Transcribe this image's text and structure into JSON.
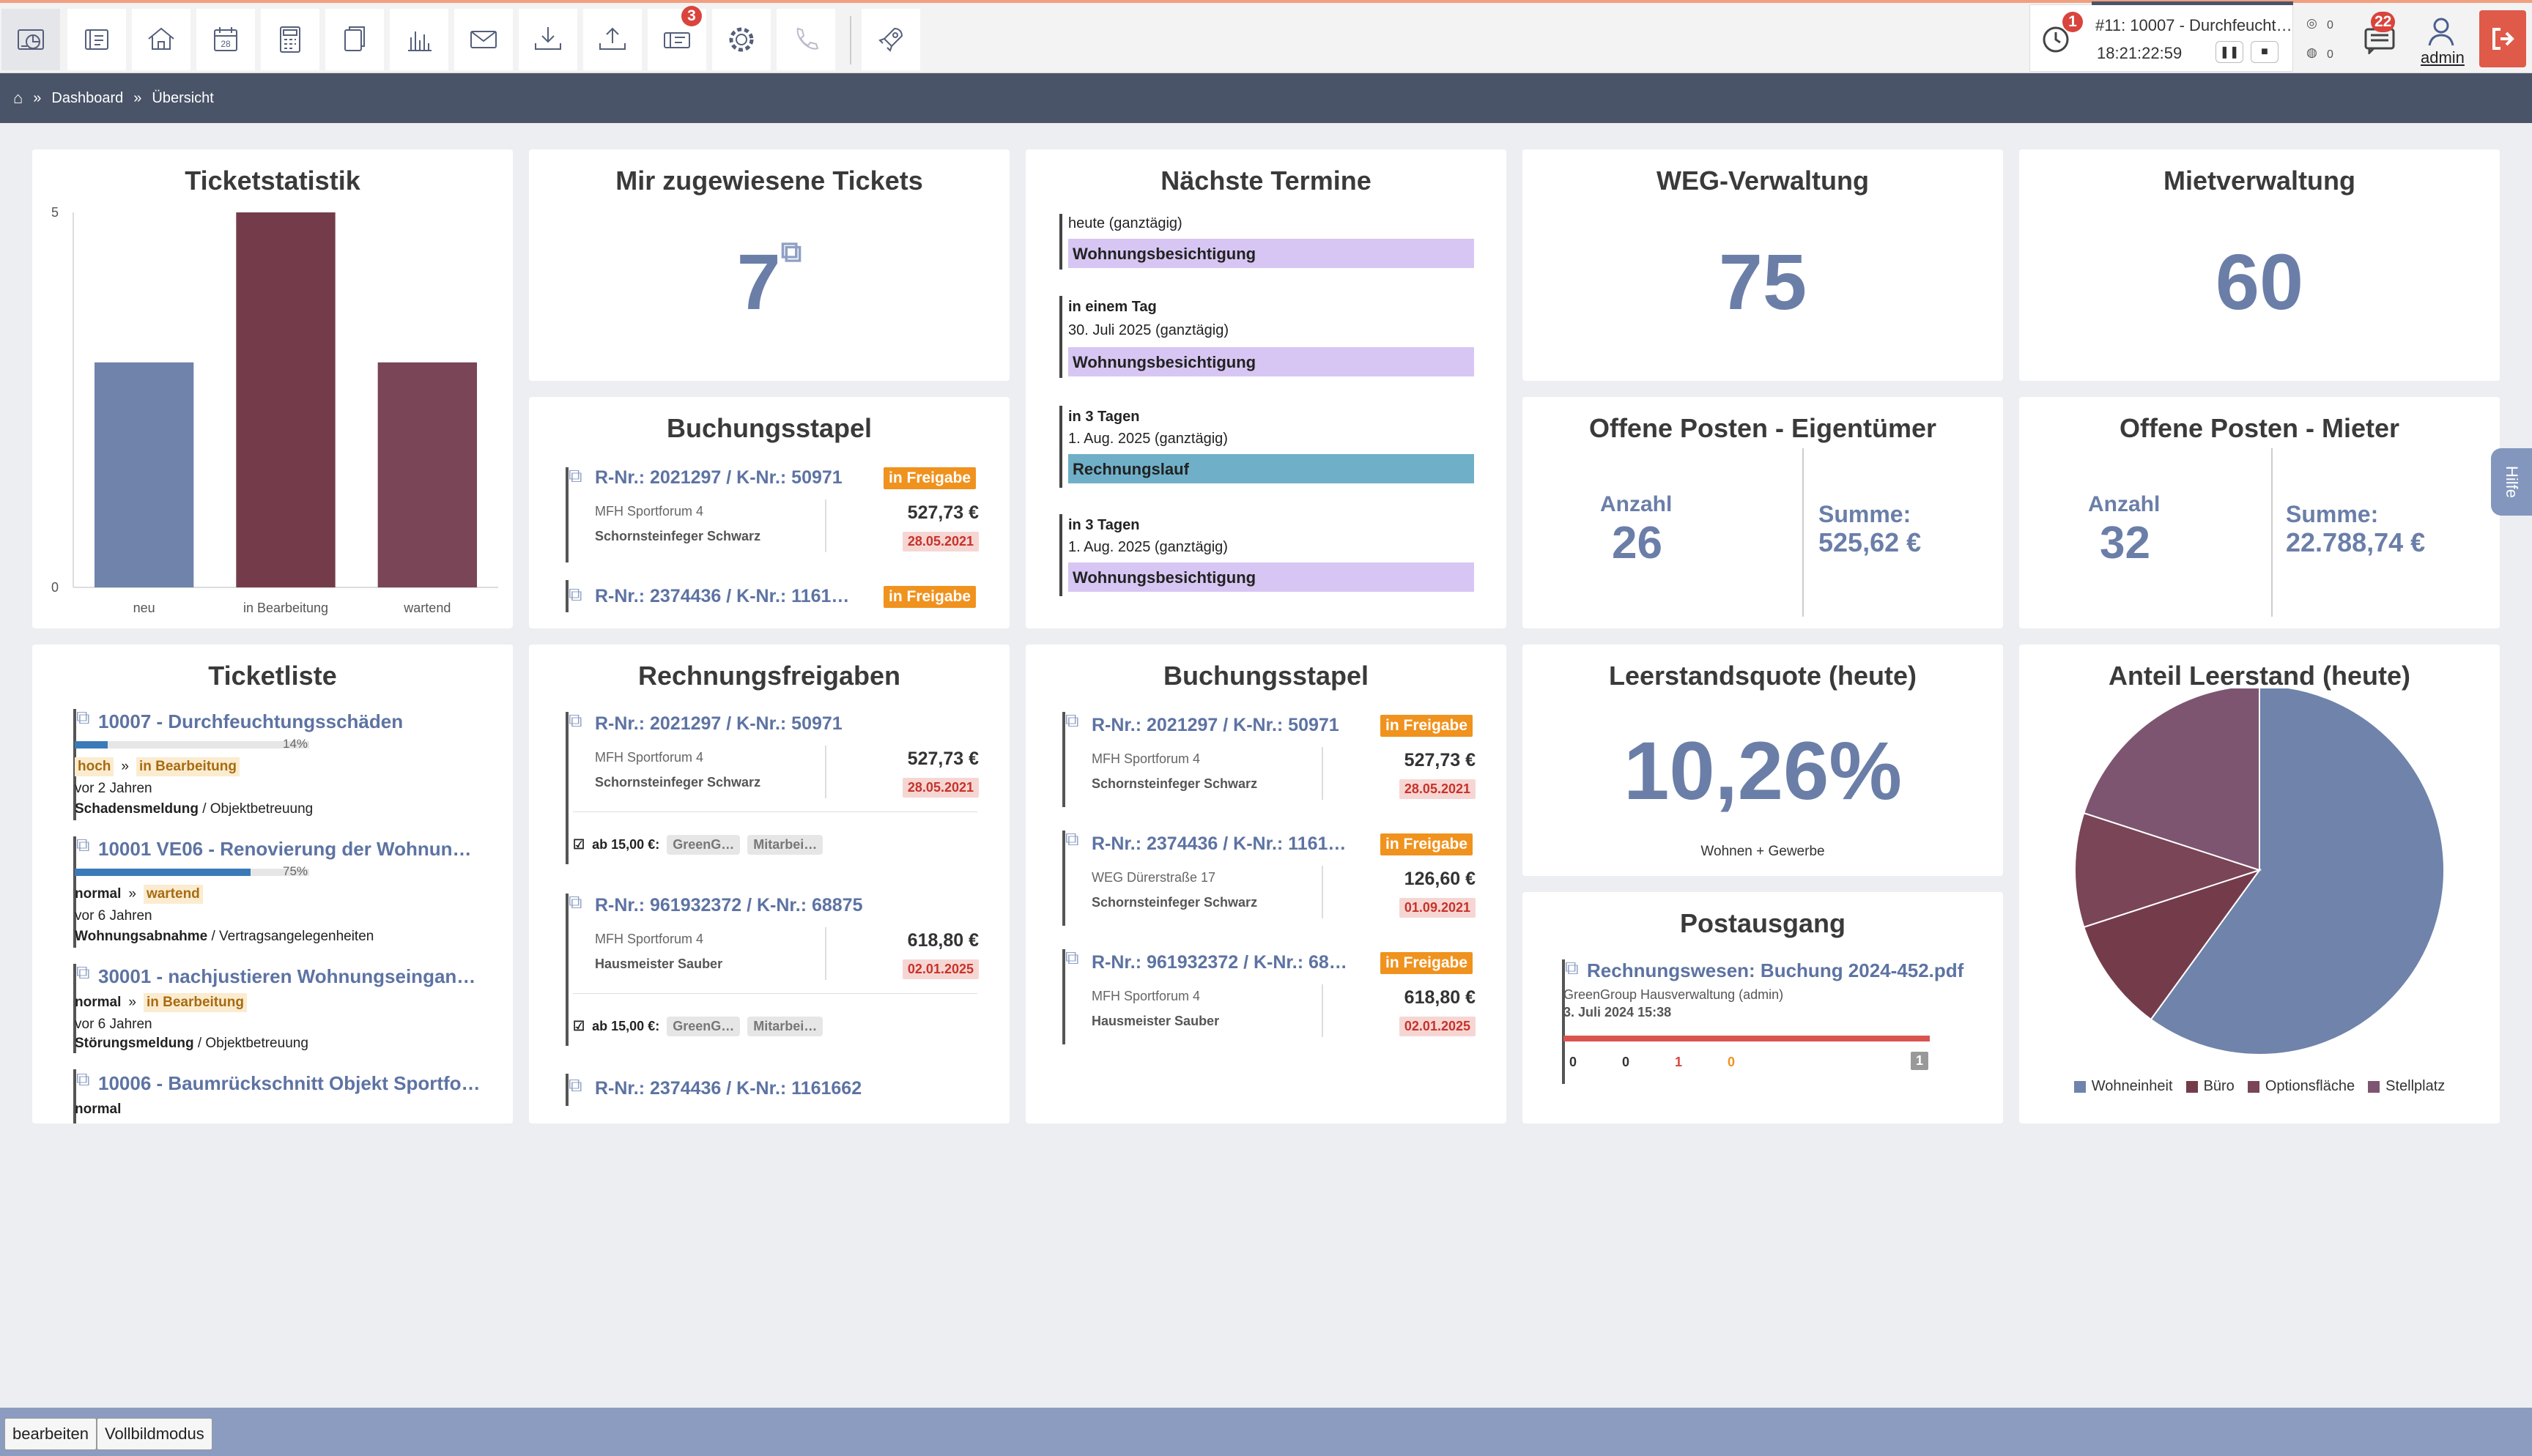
{
  "topbar": {
    "icons": [
      "dashboard-icon",
      "address-book-icon",
      "house-icon",
      "calendar-icon",
      "calculator-icon",
      "documents-icon",
      "bar-chart-icon",
      "mail-icon",
      "download-icon",
      "upload-icon",
      "tickets-icon",
      "settings-icon",
      "phone-icon",
      "rocket-icon"
    ],
    "calendar_day": "28",
    "tickets_badge": "3",
    "timer": {
      "badge": "1",
      "title": "#11: 10007 - Durchfeucht…",
      "time": "18:21:22:59"
    },
    "counter_a": "0",
    "counter_b": "0",
    "messages_badge": "22",
    "user": "admin"
  },
  "breadcrumb": {
    "items": [
      "Dashboard",
      "Übersicht"
    ],
    "separator": "»"
  },
  "ticketstatistik": {
    "title": "Ticketstatistik",
    "chart_data": {
      "type": "bar",
      "categories": [
        "neu",
        "in Bearbeitung",
        "wartend"
      ],
      "values": [
        3,
        5,
        3
      ],
      "colors": [
        "#6f83ab",
        "#743c4a",
        "#7a4556"
      ],
      "ylim": [
        0,
        5
      ],
      "yticks": [
        "0",
        "5"
      ]
    }
  },
  "mir_tickets": {
    "title": "Mir zugewiesene Tickets",
    "value": "7"
  },
  "termine": {
    "title": "Nächste Termine",
    "items": [
      {
        "when": "heute (ganztägig)",
        "when_bold": "",
        "label": "Wohnungsbesichtigung",
        "color": "#d7c6f3"
      },
      {
        "when_bold": "in einem Tag",
        "when": "30. Juli 2025 (ganztägig)",
        "label": "Wohnungsbesichtigung",
        "color": "#d7c6f3"
      },
      {
        "when_bold": "in 3 Tagen",
        "when": "1. Aug. 2025 (ganztägig)",
        "label": "Rechnungslauf",
        "color": "#6fb0c8"
      },
      {
        "when_bold": "in 3 Tagen",
        "when": "1. Aug. 2025 (ganztägig)",
        "label": "Wohnungsbesichtigung",
        "color": "#d7c6f3"
      }
    ]
  },
  "weg": {
    "title": "WEG-Verwaltung",
    "value": "75"
  },
  "miet": {
    "title": "Mietverwaltung",
    "value": "60"
  },
  "buchungsstapel_top": {
    "title": "Buchungsstapel",
    "items": [
      {
        "ref": "R-Nr.: 2021297 / K-Nr.: 50971",
        "status": "in Freigabe",
        "property": "MFH Sportforum 4",
        "vendor": "Schornsteinfeger Schwarz",
        "amount": "527,73 €",
        "date": "28.05.2021"
      },
      {
        "ref": "R-Nr.: 2374436 / K-Nr.: 1161…",
        "status": "in Freigabe"
      }
    ]
  },
  "op_eigentuemer": {
    "title": "Offene Posten - Eigentümer",
    "count_label": "Anzahl",
    "count": "26",
    "sum_label": "Summe:",
    "sum": "525,62 €"
  },
  "op_mieter": {
    "title": "Offene Posten - Mieter",
    "count_label": "Anzahl",
    "count": "32",
    "sum_label": "Summe:",
    "sum": "22.788,74 €"
  },
  "ticketliste": {
    "title": "Ticketliste",
    "items": [
      {
        "title": "10007 - Durchfeuchtungsschäden",
        "progress": 0.14,
        "progress_label": "14%",
        "priority": "hoch",
        "sep": "»",
        "status": "in Bearbeitung",
        "age": "vor 2 Jahren",
        "category": "Schadensmeldung",
        "subcategory": "/ Objektbetreuung"
      },
      {
        "title": "10001 VE06 - Renovierung der Wohnun…",
        "progress": 0.75,
        "progress_label": "75%",
        "priority": "normal",
        "sep": "»",
        "status": "wartend",
        "age": "vor 6 Jahren",
        "category": "Wohnungsabnahme",
        "subcategory": "/ Vertragsangelegenheiten"
      },
      {
        "title": "30001 - nachjustieren Wohnungseingan…",
        "priority": "normal",
        "sep": "»",
        "status": "in Bearbeitung",
        "age": "vor 6 Jahren",
        "category": "Störungsmeldung",
        "subcategory": "/ Objektbetreuung"
      },
      {
        "title": "10006 - Baumrückschnitt Objekt Sportfo…",
        "priority": "normal"
      }
    ]
  },
  "rechnungsfreigaben": {
    "title": "Rechnungsfreigaben",
    "items": [
      {
        "ref": "R-Nr.: 2021297 / K-Nr.: 50971",
        "property": "MFH Sportforum 4",
        "vendor": "Schornsteinfeger Schwarz",
        "amount": "527,73 €",
        "date": "28.05.2021",
        "threshold": "ab 15,00 €:",
        "chips": [
          "GreenG…",
          "Mitarbei…"
        ]
      },
      {
        "ref": "R-Nr.: 961932372 / K-Nr.: 68875",
        "property": "MFH Sportforum 4",
        "vendor": "Hausmeister Sauber",
        "amount": "618,80 €",
        "date": "02.01.2025",
        "threshold": "ab 15,00 €:",
        "chips": [
          "GreenG…",
          "Mitarbei…"
        ]
      },
      {
        "ref": "R-Nr.: 2374436 / K-Nr.: 1161662"
      }
    ]
  },
  "buchungsstapel_mid": {
    "title": "Buchungsstapel",
    "items": [
      {
        "ref": "R-Nr.: 2021297 / K-Nr.: 50971",
        "status": "in Freigabe",
        "property": "MFH Sportforum 4",
        "vendor": "Schornsteinfeger Schwarz",
        "amount": "527,73 €",
        "date": "28.05.2021"
      },
      {
        "ref": "R-Nr.: 2374436 / K-Nr.: 1161…",
        "status": "in Freigabe",
        "property": "WEG Dürerstraße 17",
        "vendor": "Schornsteinfeger Schwarz",
        "amount": "126,60 €",
        "date": "01.09.2021"
      },
      {
        "ref": "R-Nr.: 961932372 / K-Nr.: 68…",
        "status": "in Freigabe",
        "property": "MFH Sportforum 4",
        "vendor": "Hausmeister Sauber",
        "amount": "618,80 €",
        "date": "02.01.2025"
      }
    ]
  },
  "leerstand": {
    "title": "Leerstandsquote (heute)",
    "value": "10,26%",
    "subtitle": "Wohnen + Gewerbe"
  },
  "postausgang": {
    "title": "Postausgang",
    "item": {
      "title": "Rechnungswesen: Buchung 2024-452.pdf",
      "sender": "GreenGroup Hausverwaltung (admin)",
      "date": "3. Juli 2024 15:38"
    },
    "counts": [
      "0",
      "0",
      "1",
      "0"
    ],
    "count_colors": [
      "#333",
      "#333",
      "#d9443c",
      "#f0921e"
    ],
    "total": "1"
  },
  "anteil": {
    "title": "Anteil Leerstand (heute)",
    "chart_data": {
      "type": "pie",
      "categories": [
        "Wohneinheit",
        "Büro",
        "Optionsfläche",
        "Stellplatz"
      ],
      "values": [
        60,
        10,
        10,
        20
      ],
      "colors": [
        "#6f83ab",
        "#743c4a",
        "#7a4556",
        "#7e5570"
      ]
    }
  },
  "bottom": {
    "edit": "bearbeiten",
    "fullscreen": "Vollbildmodus"
  },
  "help": "Hilfe"
}
